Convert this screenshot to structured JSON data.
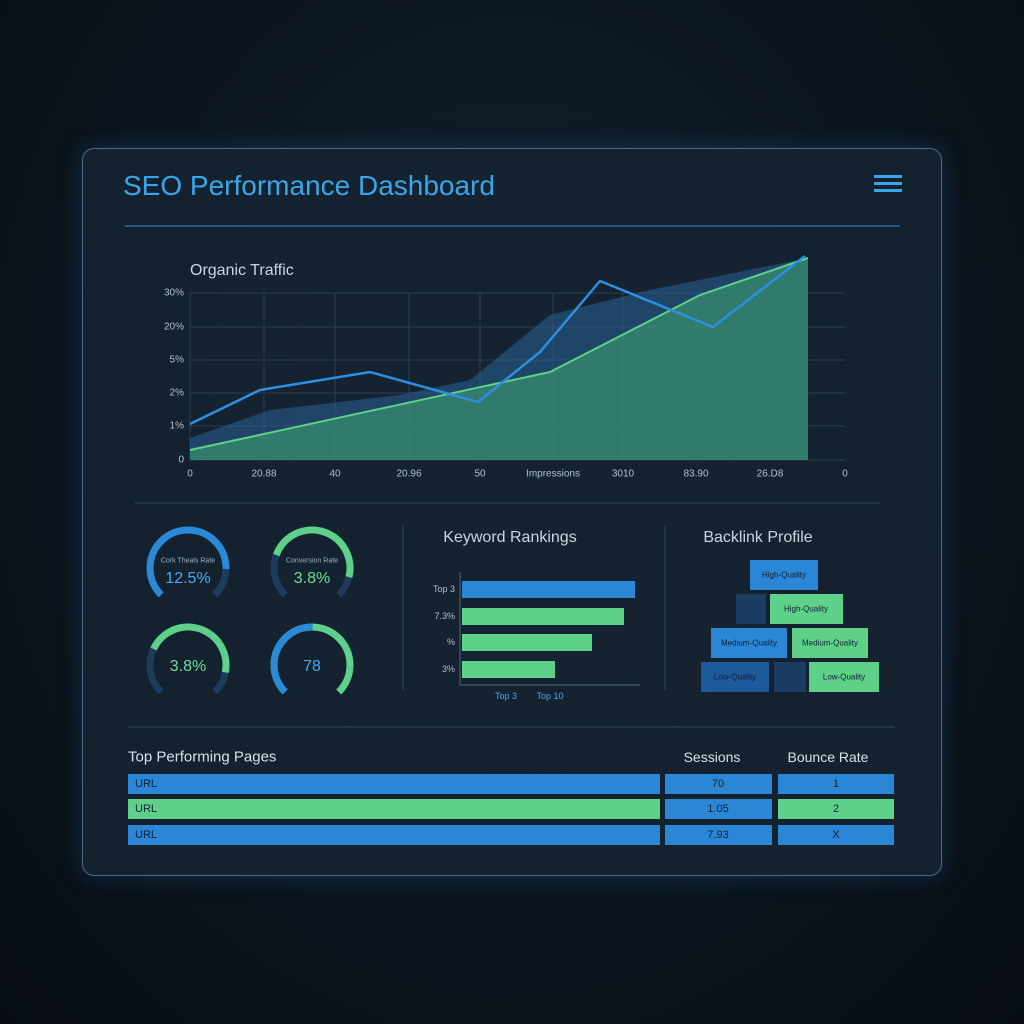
{
  "header": {
    "title": "SEO Performance Dashboard"
  },
  "traffic": {
    "title": "Organic Traffic",
    "yticks": [
      "30%",
      "20%",
      "5%",
      "2%",
      "1%",
      "0"
    ],
    "xticks": [
      "0",
      "20.88",
      "40",
      "20.96",
      "50",
      "Impressions",
      "3010",
      "83.90",
      "26.D8",
      "0"
    ]
  },
  "gauges": [
    {
      "label": "Cork Theals Rate",
      "value": "12.5%"
    },
    {
      "label": "Conversion Rate",
      "value": "3.8%"
    },
    {
      "value": "3.8%"
    },
    {
      "value": "78"
    }
  ],
  "keywords": {
    "title": "Keyword Rankings",
    "labels": [
      "Top 3",
      "7.3%",
      "%",
      "3%"
    ],
    "axis_labels": [
      "Top 3",
      "Top 10"
    ]
  },
  "backlinks": {
    "title": "Backlink Profile",
    "boxes": [
      "High-Quality",
      "High-Quality",
      "Medium-Quality",
      "Medium-Quality",
      "Low-Quality",
      "Low-Quality"
    ]
  },
  "table": {
    "title": "Top Performing Pages",
    "columns": [
      "Sessions",
      "Bounce Rate"
    ],
    "rows": [
      [
        "URL",
        "70",
        "1"
      ],
      [
        "URL",
        "1.05",
        "2"
      ],
      [
        "URL",
        "7.93",
        "X"
      ]
    ]
  }
}
